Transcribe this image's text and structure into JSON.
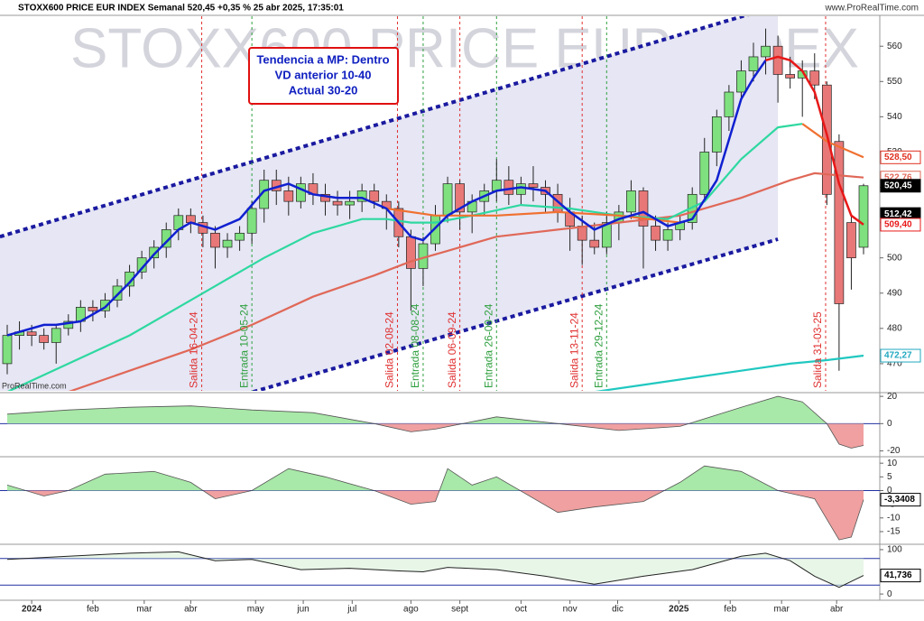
{
  "header": "STOXX600 PRICE EUR INDEX Semanal 520,45 +0,35 % 25 abr 2025, 17:35:01",
  "site": "www.ProRealTime.com",
  "chart_data": [
    {
      "type": "candlestick",
      "watermark": "STOXX600 PRICE EUR INDEX",
      "logo": "ProRealTime.com",
      "annotation": [
        "Tendencia a MP: Dentro",
        "VD anterior 10-40",
        "Actual 30-20"
      ],
      "ylim": [
        462.3,
        568.5
      ],
      "yticks": [
        470,
        480,
        490,
        500,
        510,
        520,
        530,
        540,
        550,
        560
      ],
      "xticks": [
        {
          "value": 2,
          "label": "2024"
        },
        {
          "value": 7,
          "label": "feb"
        },
        {
          "value": 11.2,
          "label": "mar"
        },
        {
          "value": 15,
          "label": "abr"
        },
        {
          "value": 20.3,
          "label": "may"
        },
        {
          "value": 24.2,
          "label": "jun"
        },
        {
          "value": 28.2,
          "label": "jul"
        },
        {
          "value": 33,
          "label": "ago"
        },
        {
          "value": 37,
          "label": "sept"
        },
        {
          "value": 42,
          "label": "oct"
        },
        {
          "value": 46,
          "label": "nov"
        },
        {
          "value": 49.9,
          "label": "dic"
        },
        {
          "value": 54.9,
          "label": "2025"
        },
        {
          "value": 59.1,
          "label": "feb"
        },
        {
          "value": 63.3,
          "label": "mar"
        },
        {
          "value": 67.8,
          "label": "abr"
        }
      ],
      "candles": [
        [
          470,
          481,
          467,
          478
        ],
        [
          478,
          482,
          474,
          479
        ],
        [
          479,
          481,
          475,
          478
        ],
        [
          478,
          480,
          474,
          476
        ],
        [
          476,
          481,
          470,
          480
        ],
        [
          480,
          484,
          478,
          482
        ],
        [
          482,
          488,
          479,
          486
        ],
        [
          486,
          488,
          482,
          485
        ],
        [
          485,
          490,
          483,
          488
        ],
        [
          488,
          494,
          486,
          492
        ],
        [
          492,
          498,
          489,
          496
        ],
        [
          496,
          502,
          494,
          500
        ],
        [
          500,
          505,
          497,
          503
        ],
        [
          503,
          510,
          500,
          508
        ],
        [
          508,
          514,
          505,
          512
        ],
        [
          512,
          514,
          507,
          510
        ],
        [
          510,
          512,
          503,
          507
        ],
        [
          507,
          509,
          497,
          503
        ],
        [
          503,
          507,
          500,
          505
        ],
        [
          505,
          509,
          502,
          507
        ],
        [
          507,
          516,
          504,
          514
        ],
        [
          514,
          525,
          510,
          522
        ],
        [
          522,
          525,
          515,
          519
        ],
        [
          519,
          523,
          512,
          516
        ],
        [
          516,
          523,
          514,
          521
        ],
        [
          521,
          524,
          515,
          518
        ],
        [
          518,
          521,
          512,
          516
        ],
        [
          516,
          519,
          512,
          515
        ],
        [
          515,
          519,
          511,
          516
        ],
        [
          516,
          521,
          513,
          519
        ],
        [
          519,
          521,
          514,
          516
        ],
        [
          516,
          518,
          508,
          514
        ],
        [
          514,
          516,
          503,
          506
        ],
        [
          506,
          508,
          485,
          497
        ],
        [
          497,
          506,
          492,
          504
        ],
        [
          504,
          515,
          502,
          512
        ],
        [
          512,
          523,
          510,
          521
        ],
        [
          521,
          522,
          508,
          513
        ],
        [
          513,
          518,
          507,
          516
        ],
        [
          516,
          521,
          512,
          519
        ],
        [
          519,
          528,
          516,
          522
        ],
        [
          522,
          526,
          515,
          518
        ],
        [
          518,
          523,
          515,
          521
        ],
        [
          521,
          526,
          516,
          520
        ],
        [
          520,
          522,
          513,
          518
        ],
        [
          518,
          521,
          510,
          513
        ],
        [
          513,
          517,
          502,
          509
        ],
        [
          509,
          512,
          498,
          505
        ],
        [
          505,
          510,
          501,
          503
        ],
        [
          503,
          513,
          501,
          510
        ],
        [
          510,
          515,
          505,
          513
        ],
        [
          513,
          522,
          511,
          519
        ],
        [
          519,
          520,
          497,
          509
        ],
        [
          509,
          512,
          502,
          505
        ],
        [
          505,
          510,
          502,
          508
        ],
        [
          508,
          512,
          505,
          510
        ],
        [
          510,
          520,
          508,
          518
        ],
        [
          518,
          534,
          516,
          530
        ],
        [
          530,
          542,
          526,
          540
        ],
        [
          540,
          549,
          536,
          547
        ],
        [
          547,
          556,
          545,
          553
        ],
        [
          553,
          561,
          550,
          557
        ],
        [
          557,
          565,
          552,
          560
        ],
        [
          560,
          563,
          544,
          552
        ],
        [
          552,
          557,
          548,
          551
        ],
        [
          551,
          556,
          540,
          553
        ],
        [
          553,
          558,
          545,
          549
        ],
        [
          549,
          550,
          515,
          518
        ],
        [
          533,
          535,
          468,
          487
        ],
        [
          510,
          512,
          491,
          500
        ],
        [
          503,
          521,
          501,
          520.45
        ]
      ],
      "channel": [
        {
          "color": "#1a1aa0",
          "x": [
            -0.6,
            60.6
          ],
          "values": [
            506,
            569
          ]
        },
        {
          "color": "#1a1aa0",
          "x": [
            20.1,
            63
          ],
          "values": [
            462,
            505.3
          ]
        }
      ],
      "series": [
        {
          "color": "#e06858",
          "x": [
            5,
            10,
            15,
            20,
            25,
            30,
            33,
            36,
            40,
            45,
            50,
            55,
            60,
            64,
            66,
            70
          ],
          "values": [
            462,
            468,
            474,
            481,
            489,
            495,
            499,
            502,
            506,
            508,
            510,
            512,
            517,
            522,
            524,
            522.76
          ]
        },
        {
          "color": "#2ed8a0",
          "x": [
            0,
            5,
            10,
            14,
            17,
            21,
            25,
            29,
            31,
            33,
            35,
            38,
            42,
            46,
            50,
            54,
            57,
            60,
            63,
            65
          ],
          "values": [
            462,
            470,
            478,
            486,
            492,
            500,
            507,
            511,
            511,
            510,
            510,
            512,
            515,
            514,
            512,
            511,
            516,
            528,
            537,
            538
          ]
        },
        {
          "color": "#f07030",
          "x": [
            31,
            35,
            40,
            45,
            50,
            55,
            60,
            65,
            67,
            70
          ],
          "values": [
            514,
            512,
            512,
            513,
            512,
            510,
            null,
            538,
            533,
            528.5
          ]
        },
        {
          "color": "#20c8c0",
          "x": [
            48,
            52,
            56,
            60,
            64,
            67,
            70
          ],
          "values": [
            462,
            464,
            466,
            468,
            470,
            471,
            472.27
          ]
        },
        {
          "color": "#1020d0",
          "x": [
            0,
            3,
            4,
            6,
            8,
            10,
            12,
            14,
            15,
            17,
            19,
            21,
            23,
            25,
            27,
            29,
            31,
            33,
            34,
            36,
            38,
            40,
            42,
            44,
            46,
            48,
            50,
            52,
            54,
            56,
            58,
            60,
            61,
            62
          ],
          "values": [
            478,
            481,
            481,
            482,
            486,
            493,
            501,
            508,
            510,
            508,
            511,
            519,
            521,
            518,
            517,
            517,
            514,
            506,
            505,
            512,
            516,
            519,
            520,
            519,
            513,
            508,
            511,
            513,
            509,
            511,
            522,
            545,
            551,
            556
          ]
        },
        {
          "color": "#e81818",
          "x": [
            62,
            63,
            64,
            65,
            66,
            67,
            68,
            69,
            70
          ],
          "values": [
            556,
            557,
            556,
            553,
            547,
            535,
            521,
            512,
            509.4
          ]
        }
      ],
      "price_tags": [
        {
          "value": 528.5,
          "label": "528,50",
          "color": "#e03020"
        },
        {
          "value": 522.76,
          "label": "522,76",
          "color": "#e06858"
        },
        {
          "value": 520.45,
          "label": "520,45",
          "color": "#000000"
        },
        {
          "value": 512.42,
          "label": "512,42",
          "color": "#000000"
        },
        {
          "value": 509.4,
          "label": "509,40",
          "color": "#e81818"
        },
        {
          "value": 472.27,
          "label": "472,27",
          "color": "#20a8c0"
        }
      ],
      "signals": [
        {
          "x": 15.9,
          "label": "Salida 16-04-24",
          "color": "#e03030"
        },
        {
          "x": 20,
          "label": "Entrada 10-05-24",
          "color": "#30a040"
        },
        {
          "x": 31.9,
          "label": "Salida 02-08-24",
          "color": "#e03030"
        },
        {
          "x": 34,
          "label": "Entrada 08-08-24",
          "color": "#30a040"
        },
        {
          "x": 37,
          "label": "Salida 06-09-24",
          "color": "#e03030"
        },
        {
          "x": 40,
          "label": "Entrada 26-09-24",
          "color": "#30a040"
        },
        {
          "x": 47,
          "label": "Salida 13-11-24",
          "color": "#e03030"
        },
        {
          "x": 49,
          "label": "Entrada 29-12-24",
          "color": "#30a040"
        },
        {
          "x": 66.9,
          "label": "Salida 31-03-25",
          "color": "#e03030"
        }
      ]
    },
    {
      "type": "area",
      "ylim": [
        -23.6,
        21.4
      ],
      "yticks": [
        20,
        0,
        -20
      ],
      "x": [
        0,
        5,
        10,
        15,
        20,
        25,
        30,
        33,
        35,
        40,
        45,
        50,
        55,
        60,
        63,
        65,
        67,
        68,
        69,
        70
      ],
      "values": [
        7,
        10,
        12,
        13,
        10,
        8,
        0,
        -6,
        -4,
        5,
        0,
        -5,
        -2,
        12,
        20,
        16,
        0,
        -15,
        -18,
        -16
      ]
    },
    {
      "type": "area",
      "ylim": [
        -19.3,
        11.7
      ],
      "yticks": [
        10,
        5,
        0,
        -5,
        -10,
        -15
      ],
      "x": [
        0,
        3,
        5,
        8,
        12,
        15,
        17,
        20,
        23,
        26,
        30,
        33,
        35,
        36,
        38,
        40,
        45,
        48,
        52,
        55,
        57,
        60,
        63,
        66,
        68,
        69,
        70
      ],
      "values": [
        2,
        -2,
        0,
        6,
        7,
        3,
        -3,
        0,
        8,
        5,
        0,
        -5,
        -4,
        8,
        2,
        5,
        -8,
        -6,
        -4,
        3,
        9,
        7,
        0,
        -3,
        -18,
        -17,
        -3.3408
      ],
      "value_tag": {
        "value": -3.3408,
        "label": "-3,3408"
      }
    },
    {
      "type": "line",
      "ylim": [
        -14,
        108
      ],
      "yticks": [
        100,
        0
      ],
      "levels": [
        80,
        20
      ],
      "x": [
        0,
        5,
        10,
        14,
        17,
        20,
        24,
        28,
        32,
        34,
        36,
        40,
        44,
        48,
        52,
        56,
        60,
        62,
        64,
        66,
        68,
        70
      ],
      "values": [
        78,
        85,
        92,
        95,
        75,
        78,
        55,
        58,
        52,
        50,
        60,
        55,
        40,
        22,
        40,
        55,
        85,
        92,
        75,
        40,
        15,
        41.736
      ],
      "value_tag": {
        "value": 41.736,
        "label": "41,736"
      }
    }
  ]
}
